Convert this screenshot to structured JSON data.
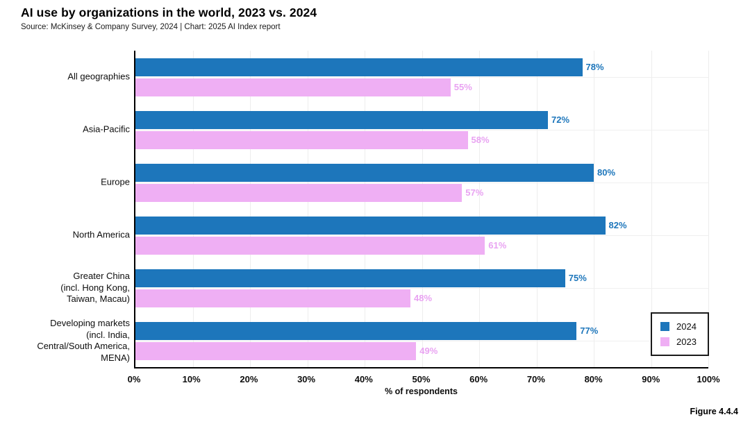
{
  "header": {
    "title": "AI use by organizations in the world, 2023 vs. 2024",
    "source": "Source: McKinsey & Company Survey, 2024 | Chart: 2025 AI Index report"
  },
  "chart_data": {
    "type": "bar",
    "orientation": "horizontal",
    "title": "AI use by organizations in the world, 2023 vs. 2024",
    "categories": [
      "All geographies",
      "Asia-Pacific",
      "Europe",
      "North America",
      "Greater China\n(incl. Hong Kong,\nTaiwan, Macau)",
      "Developing markets\n(incl. India,\nCentral/South America,\nMENA)"
    ],
    "series": [
      {
        "name": "2024",
        "color": "#1d76bb",
        "label_color": "#1d76bb",
        "values": [
          78,
          72,
          80,
          82,
          75,
          77
        ],
        "value_labels": [
          "78%",
          "72%",
          "80%",
          "82%",
          "75%",
          "77%"
        ]
      },
      {
        "name": "2023",
        "color": "#efaff4",
        "label_color": "#e9a3f2",
        "values": [
          55,
          58,
          57,
          61,
          48,
          49
        ],
        "value_labels": [
          "55%",
          "58%",
          "57%",
          "61%",
          "48%",
          "49%"
        ]
      }
    ],
    "xlabel": "% of respondents",
    "ylabel": "",
    "xlim": [
      0,
      100
    ],
    "x_ticks": [
      "0%",
      "10%",
      "20%",
      "30%",
      "40%",
      "50%",
      "60%",
      "70%",
      "80%",
      "90%",
      "100%"
    ],
    "x_tick_values": [
      0,
      10,
      20,
      30,
      40,
      50,
      60,
      70,
      80,
      90,
      100
    ],
    "grid": "faint vertical and category-center lines",
    "legend_position": "bottom-right"
  },
  "footer": {
    "figure_label": "Figure 4.4.4"
  }
}
